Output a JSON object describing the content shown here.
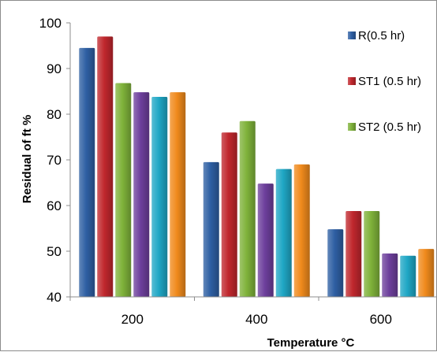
{
  "chart_data": {
    "type": "bar",
    "title": "",
    "xlabel": "Temperature °C",
    "ylabel": "Residual of ft %",
    "categories": [
      "200",
      "400",
      "600"
    ],
    "ylim": [
      40,
      100
    ],
    "yticks": [
      40,
      50,
      60,
      70,
      80,
      90,
      100
    ],
    "grid": false,
    "legend_position": "right",
    "series": [
      {
        "name": "R(0.5 hr)",
        "color": "#2e5fa3",
        "values": [
          94.5,
          69.5,
          54.8
        ]
      },
      {
        "name": "ST1 (0.5 hr)",
        "color": "#c0272d",
        "values": [
          97.0,
          76.0,
          58.8
        ]
      },
      {
        "name": "ST2 (0.5 hr)",
        "color": "#7fb23a",
        "values": [
          86.8,
          78.5,
          58.8
        ]
      },
      {
        "color": "#6d3f9c",
        "values": [
          84.8,
          64.8,
          49.5
        ]
      },
      {
        "color": "#1fa7c5",
        "values": [
          83.8,
          68.0,
          49.0
        ]
      },
      {
        "color": "#f08a1c",
        "values": [
          84.8,
          69.0,
          50.5
        ]
      }
    ]
  }
}
